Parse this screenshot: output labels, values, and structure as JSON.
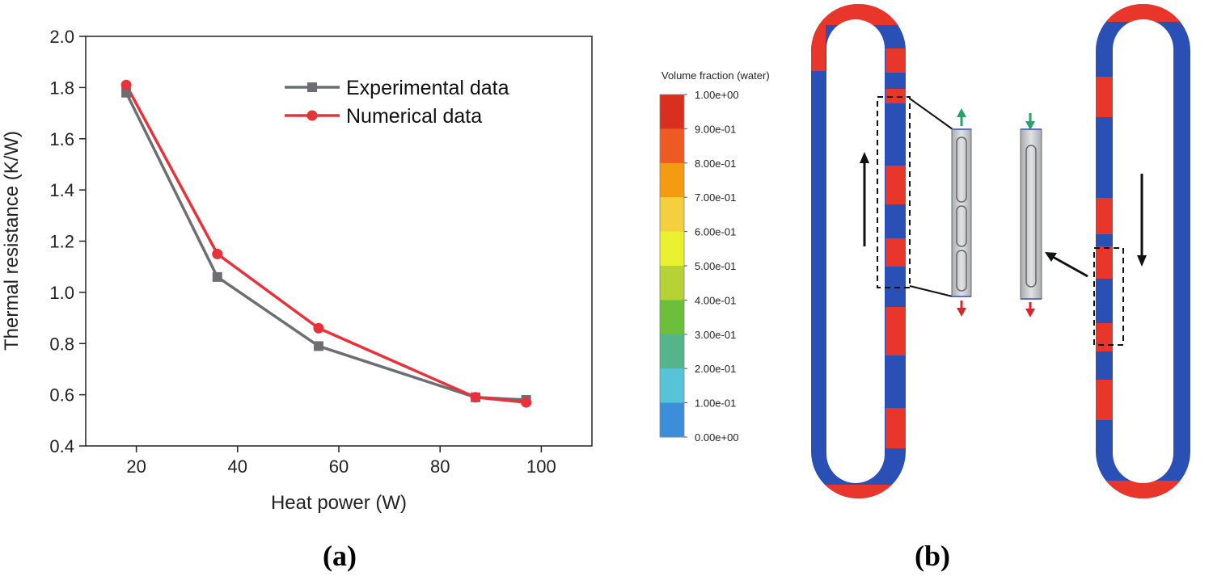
{
  "panel_a": {
    "label": "(a)"
  },
  "panel_b": {
    "label": "(b)",
    "colorbar": {
      "title": "Volume fraction (water)",
      "labels": [
        "1.00e+00",
        "9.00e-01",
        "8.00e-01",
        "7.00e-01",
        "6.00e-01",
        "5.00e-01",
        "4.00e-01",
        "3.00e-01",
        "2.00e-01",
        "1.00e-01",
        "0.00e+00"
      ],
      "colors": [
        "#d7301f",
        "#ee5a24",
        "#f39c12",
        "#f4d03f",
        "#eaf230",
        "#b5d334",
        "#6cbf3a",
        "#55b58a",
        "#56c4d6",
        "#3a8fd8",
        "#2f4fb0"
      ]
    },
    "colors": {
      "vapor": "#2a4fb5",
      "liquid": "#e8372a",
      "up_arrow": "#2aa06a",
      "down_arrow": "#d9262b",
      "photo": "#c9cbcc"
    }
  },
  "chart_data": {
    "type": "line",
    "xlabel": "Heat power (W)",
    "ylabel": "Thermal resistance (K/W)",
    "xlim": [
      10,
      110
    ],
    "ylim": [
      0.4,
      2.0
    ],
    "xticks": [
      20,
      40,
      60,
      80,
      100
    ],
    "yticks": [
      0.4,
      0.6,
      0.8,
      1.0,
      1.2,
      1.4,
      1.6,
      1.8,
      2.0
    ],
    "ytick_labels": [
      "0.4",
      "0.6",
      "0.8",
      "1.0",
      "1.2",
      "1.4",
      "1.6",
      "1.8",
      "2.0"
    ],
    "grid": false,
    "legend_position": "top-right",
    "series": [
      {
        "name": "Experimental data",
        "marker": "square",
        "color": "#6d6e71",
        "x": [
          18,
          36,
          56,
          87,
          97
        ],
        "y": [
          1.78,
          1.06,
          0.79,
          0.59,
          0.58
        ]
      },
      {
        "name": "Numerical data",
        "marker": "circle",
        "color": "#e8323a",
        "x": [
          18,
          36,
          56,
          87,
          97
        ],
        "y": [
          1.81,
          1.15,
          0.86,
          0.59,
          0.57
        ]
      }
    ]
  }
}
